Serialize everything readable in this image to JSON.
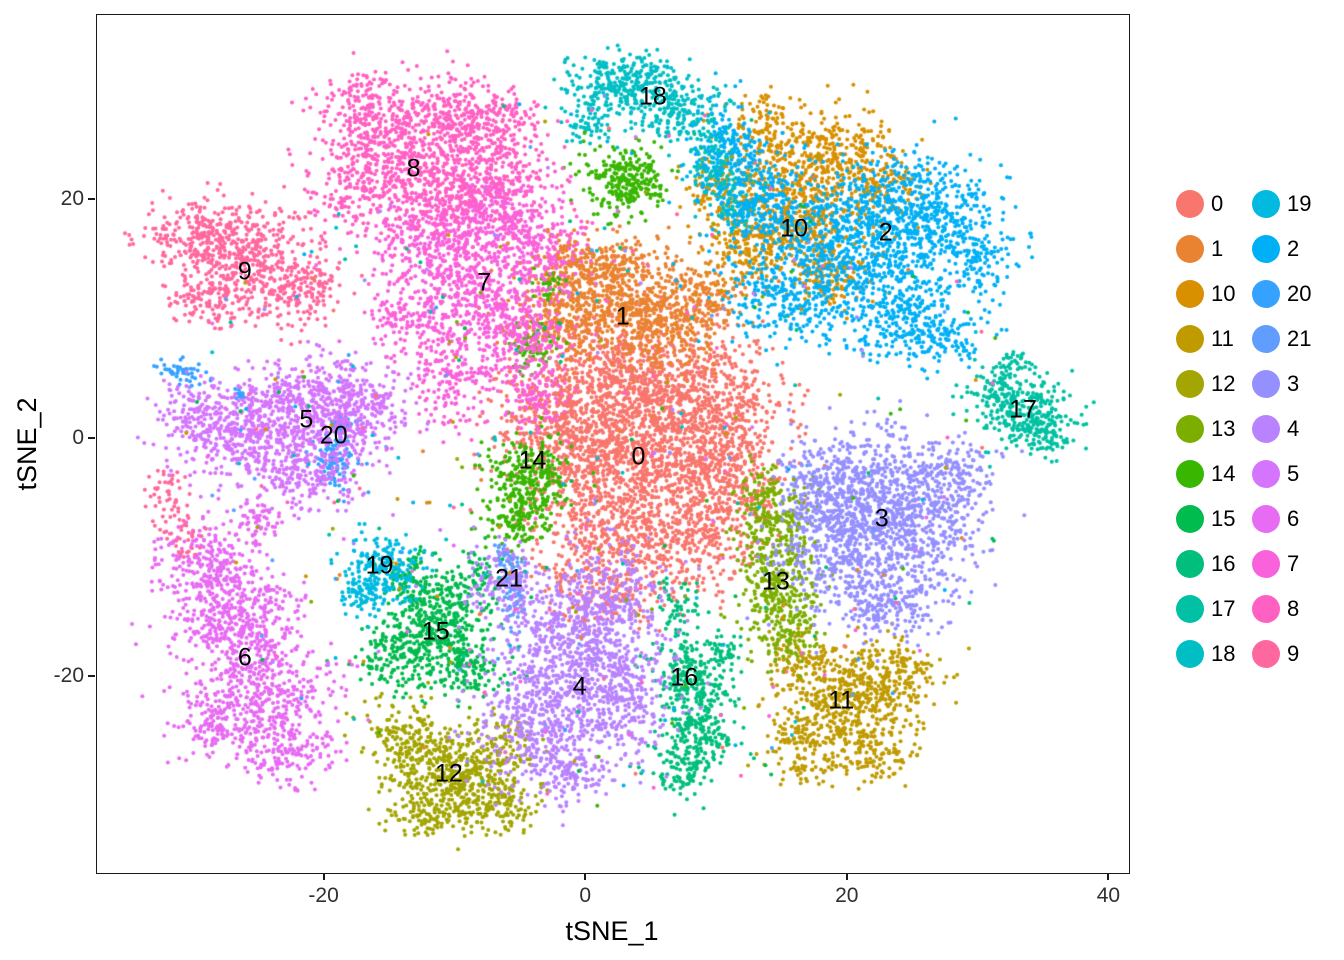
{
  "chart_data": {
    "type": "scatter",
    "title": "",
    "xlabel": "tSNE_1",
    "ylabel": "tSNE_2",
    "xlim": [
      -37.4,
      41.5
    ],
    "ylim": [
      -36.4,
      35.5
    ],
    "xticks": [
      -20,
      0,
      20,
      40
    ],
    "yticks": [
      -20,
      0,
      20
    ],
    "grid": false,
    "point_radius": 2,
    "noise_points": 450,
    "legend": {
      "position": "right",
      "columns": [
        [
          "0",
          "1",
          "10",
          "11",
          "12",
          "13",
          "14",
          "15",
          "16",
          "17",
          "18"
        ],
        [
          "19",
          "2",
          "20",
          "21",
          "3",
          "4",
          "5",
          "6",
          "7",
          "8",
          "9"
        ]
      ]
    },
    "clusters": [
      {
        "id": "0",
        "color": "#F8766D",
        "label": {
          "x": 4.0,
          "y": -1.5
        },
        "blobs": [
          [
            3,
            5,
            4,
            3,
            800
          ],
          [
            6,
            -1,
            4,
            3.5,
            900
          ],
          [
            0,
            -2,
            3,
            3,
            500
          ],
          [
            3,
            -9,
            3.5,
            2.5,
            450
          ],
          [
            9,
            -7,
            2.5,
            2.5,
            300
          ],
          [
            10,
            3,
            2.5,
            3,
            300
          ],
          [
            -3,
            2,
            2,
            2,
            200
          ],
          [
            12,
            -3,
            1.5,
            2,
            120
          ],
          [
            1,
            -13,
            2,
            1.5,
            120
          ]
        ]
      },
      {
        "id": "1",
        "color": "#EA8331",
        "label": {
          "x": 2.8,
          "y": 10.2
        },
        "blobs": [
          [
            2,
            12,
            3.5,
            2,
            550
          ],
          [
            6,
            9.5,
            2.5,
            2,
            280
          ],
          [
            -2,
            9.5,
            2,
            1.5,
            150
          ],
          [
            0,
            15,
            2,
            1.3,
            180
          ],
          [
            9,
            12,
            1.5,
            1.5,
            100
          ]
        ]
      },
      {
        "id": "10",
        "color": "#D89000",
        "label": {
          "x": 15.9,
          "y": 17.6
        },
        "blobs": [
          [
            16,
            20,
            2.8,
            2.5,
            450
          ],
          [
            12.5,
            16.5,
            2,
            2,
            220
          ],
          [
            19.5,
            24,
            2,
            1.8,
            200
          ],
          [
            14,
            25.5,
            1.8,
            1.5,
            150
          ],
          [
            19,
            14,
            1.8,
            1.5,
            150
          ],
          [
            23,
            21,
            1.5,
            1.5,
            100
          ],
          [
            10,
            21,
            1.2,
            1.5,
            80
          ]
        ]
      },
      {
        "id": "11",
        "color": "#C09B00",
        "label": {
          "x": 19.5,
          "y": -22.0
        },
        "blobs": [
          [
            20,
            -22,
            2.5,
            2.2,
            450
          ],
          [
            23.5,
            -19.5,
            1.8,
            1.5,
            150
          ],
          [
            17,
            -26,
            1.8,
            1.5,
            140
          ],
          [
            22,
            -26.5,
            1.5,
            1.2,
            100
          ],
          [
            16.5,
            -18.5,
            1.2,
            1.2,
            80
          ]
        ]
      },
      {
        "id": "12",
        "color": "#A3A500",
        "label": {
          "x": -10.5,
          "y": -28.1
        },
        "blobs": [
          [
            -10.5,
            -28,
            2.5,
            2,
            430
          ],
          [
            -13.5,
            -25,
            1.5,
            1.5,
            140
          ],
          [
            -7,
            -30.5,
            1.8,
            1.3,
            140
          ],
          [
            -12,
            -31.5,
            1.5,
            1,
            90
          ],
          [
            -6.5,
            -25.5,
            1.2,
            1.2,
            80
          ]
        ]
      },
      {
        "id": "13",
        "color": "#7CAE00",
        "label": {
          "x": 14.5,
          "y": -12.0
        },
        "blobs": [
          [
            14.5,
            -8,
            1.5,
            2,
            240
          ],
          [
            14.7,
            -13.5,
            1.5,
            2,
            220
          ],
          [
            15.5,
            -17,
            1.2,
            1.2,
            80
          ],
          [
            13.5,
            -4.5,
            1,
            1,
            60
          ]
        ]
      },
      {
        "id": "14",
        "color": "#39B600",
        "label": {
          "x": -4.1,
          "y": -1.9
        },
        "blobs": [
          [
            -4.5,
            -3.5,
            1.6,
            1.8,
            280
          ],
          [
            -5.5,
            -6.5,
            1.3,
            1.3,
            110
          ],
          [
            3,
            21.5,
            1.6,
            1.5,
            270
          ],
          [
            -4,
            7.5,
            0.8,
            1.2,
            60
          ],
          [
            -3,
            12.8,
            0.7,
            0.7,
            35
          ]
        ]
      },
      {
        "id": "15",
        "color": "#00BB4E",
        "label": {
          "x": -11.5,
          "y": -16.2
        },
        "blobs": [
          [
            -11.5,
            -15.5,
            2,
            2,
            380
          ],
          [
            -14.5,
            -18.5,
            1.5,
            1.5,
            140
          ],
          [
            -9,
            -19.5,
            1.5,
            1.3,
            120
          ],
          [
            -13.5,
            -11.5,
            1.2,
            1.2,
            90
          ],
          [
            -8.5,
            -11.5,
            1,
            1,
            60
          ]
        ]
      },
      {
        "id": "16",
        "color": "#00BF7D",
        "label": {
          "x": 7.5,
          "y": -20.1
        },
        "blobs": [
          [
            8,
            -20,
            1.4,
            1.8,
            220
          ],
          [
            8.5,
            -24.5,
            1.5,
            1.8,
            190
          ],
          [
            7.5,
            -28,
            1.2,
            1.2,
            90
          ],
          [
            7,
            -14,
            0.9,
            1,
            50
          ],
          [
            10.5,
            -18,
            0.8,
            0.8,
            40
          ]
        ]
      },
      {
        "id": "17",
        "color": "#00C1A3",
        "label": {
          "x": 33.4,
          "y": 2.4
        },
        "blobs": [
          [
            33.5,
            2.5,
            1.8,
            1.6,
            280
          ],
          [
            31.5,
            4.5,
            1,
            1,
            70
          ],
          [
            35.5,
            0.5,
            1,
            1,
            60
          ],
          [
            33,
            6.5,
            0.6,
            0.5,
            20
          ]
        ]
      },
      {
        "id": "18",
        "color": "#00BFC4",
        "label": {
          "x": 5.1,
          "y": 28.6
        },
        "blobs": [
          [
            3,
            29.5,
            2.2,
            1.4,
            320
          ],
          [
            7,
            27.5,
            1.5,
            1.3,
            150
          ],
          [
            9.5,
            23.5,
            1,
            1.8,
            140
          ],
          [
            11.5,
            19.5,
            0.9,
            1.4,
            90
          ],
          [
            0,
            26.5,
            1,
            1,
            60
          ]
        ]
      },
      {
        "id": "19",
        "color": "#00BAE0",
        "label": {
          "x": -15.8,
          "y": -10.7
        },
        "blobs": [
          [
            -15.5,
            -11,
            1.4,
            1.4,
            220
          ],
          [
            -17,
            -13,
            0.9,
            0.9,
            60
          ]
        ]
      },
      {
        "id": "2",
        "color": "#00B0F6",
        "label": {
          "x": 22.9,
          "y": 17.2
        },
        "blobs": [
          [
            21,
            17,
            4,
            3,
            800
          ],
          [
            16,
            12,
            2.5,
            2,
            280
          ],
          [
            26,
            19,
            3,
            2.5,
            350
          ],
          [
            24,
            11,
            2.5,
            2,
            250
          ],
          [
            13,
            20,
            2,
            2,
            200
          ],
          [
            27,
            8.5,
            2,
            1,
            120
          ],
          [
            11,
            24,
            1.5,
            2,
            150
          ],
          [
            30,
            15,
            1.5,
            1.5,
            100
          ]
        ]
      },
      {
        "id": "20",
        "color": "#35A2FF",
        "label": {
          "x": -19.3,
          "y": 0.2
        },
        "blobs": [
          [
            -19.3,
            -1.5,
            0.7,
            1.2,
            110
          ],
          [
            -18.5,
            1,
            0.5,
            0.6,
            30
          ],
          [
            -31,
            5.5,
            0.9,
            0.5,
            45
          ],
          [
            -26.5,
            3.5,
            0.3,
            0.3,
            12
          ]
        ]
      },
      {
        "id": "21",
        "color": "#619CFF",
        "label": {
          "x": -5.9,
          "y": -11.8
        },
        "blobs": [
          [
            -5.6,
            -12.5,
            0.45,
            1.4,
            90
          ],
          [
            -6.3,
            -9.8,
            0.4,
            0.5,
            25
          ]
        ]
      },
      {
        "id": "3",
        "color": "#9590FF",
        "label": {
          "x": 22.6,
          "y": -6.7
        },
        "blobs": [
          [
            22,
            -4,
            3,
            2.5,
            550
          ],
          [
            20,
            -10,
            2.5,
            2.5,
            400
          ],
          [
            25.5,
            -8,
            2.5,
            2.5,
            350
          ],
          [
            17.5,
            -5,
            1.5,
            2,
            180
          ],
          [
            23,
            -14,
            2,
            1.5,
            180
          ],
          [
            28,
            -3,
            1.5,
            1.5,
            120
          ]
        ]
      },
      {
        "id": "4",
        "color": "#B983FF",
        "label": {
          "x": -0.5,
          "y": -20.8
        },
        "blobs": [
          [
            -1,
            -17,
            3,
            3,
            600
          ],
          [
            2,
            -22,
            2.5,
            2.5,
            350
          ],
          [
            -4,
            -23,
            2.5,
            2,
            300
          ],
          [
            2,
            -13,
            2,
            2,
            200
          ],
          [
            -2,
            -28,
            2,
            1.5,
            180
          ],
          [
            -6,
            -12,
            1.5,
            1.5,
            120
          ]
        ]
      },
      {
        "id": "5",
        "color": "#D575FD",
        "label": {
          "x": -21.4,
          "y": 1.6
        },
        "blobs": [
          [
            -22,
            2.5,
            3,
            2,
            500
          ],
          [
            -26.5,
            0,
            2.5,
            2,
            300
          ],
          [
            -17.5,
            2.5,
            2,
            2,
            250
          ],
          [
            -21,
            -3,
            2,
            1.5,
            180
          ],
          [
            -30,
            2,
            1.5,
            1.5,
            120
          ]
        ]
      },
      {
        "id": "6",
        "color": "#E76BF3",
        "label": {
          "x": -26.1,
          "y": -18.4
        },
        "blobs": [
          [
            -27,
            -15,
            2.5,
            2.5,
            450
          ],
          [
            -24.5,
            -21,
            2.5,
            2.5,
            350
          ],
          [
            -29,
            -10.5,
            1.8,
            1.8,
            200
          ],
          [
            -23,
            -26,
            2,
            1.5,
            180
          ],
          [
            -28.5,
            -24,
            1.5,
            1.5,
            120
          ],
          [
            -25,
            -7,
            1,
            1,
            60
          ]
        ]
      },
      {
        "id": "7",
        "color": "#FA62DB",
        "label": {
          "x": -7.8,
          "y": 13.0
        },
        "blobs": [
          [
            -9,
            13,
            2.5,
            3,
            450
          ],
          [
            -5.5,
            8,
            2,
            2.5,
            300
          ],
          [
            -12,
            17,
            2.5,
            2,
            280
          ],
          [
            -4,
            16,
            2,
            2,
            250
          ],
          [
            -7,
            20,
            2,
            1.5,
            200
          ],
          [
            -10.5,
            5,
            1.5,
            2,
            150
          ],
          [
            -14,
            10,
            1.5,
            1.5,
            120
          ],
          [
            -3.5,
            3.5,
            1,
            1.5,
            80
          ]
        ]
      },
      {
        "id": "8",
        "color": "#FF61C3",
        "label": {
          "x": -13.2,
          "y": 22.6
        },
        "blobs": [
          [
            -13,
            24,
            3,
            2.5,
            500
          ],
          [
            -9,
            27,
            2.5,
            1.5,
            250
          ],
          [
            -16.5,
            27.5,
            2,
            1.5,
            200
          ],
          [
            -17,
            21,
            2,
            2,
            200
          ],
          [
            -6,
            23,
            2,
            2,
            200
          ],
          [
            -10,
            20,
            2,
            1.5,
            150
          ]
        ]
      },
      {
        "id": "9",
        "color": "#FF689E",
        "label": {
          "x": -26.1,
          "y": 14.0
        },
        "blobs": [
          [
            -26,
            15,
            2.8,
            2.2,
            450
          ],
          [
            -30,
            17,
            2,
            1.5,
            180
          ],
          [
            -22,
            12.5,
            1.8,
            1.5,
            150
          ],
          [
            -29,
            11.5,
            1.5,
            1.2,
            100
          ],
          [
            -32,
            -5,
            1,
            1.5,
            50
          ],
          [
            -30.5,
            -8,
            0.8,
            1,
            30
          ]
        ]
      }
    ]
  }
}
